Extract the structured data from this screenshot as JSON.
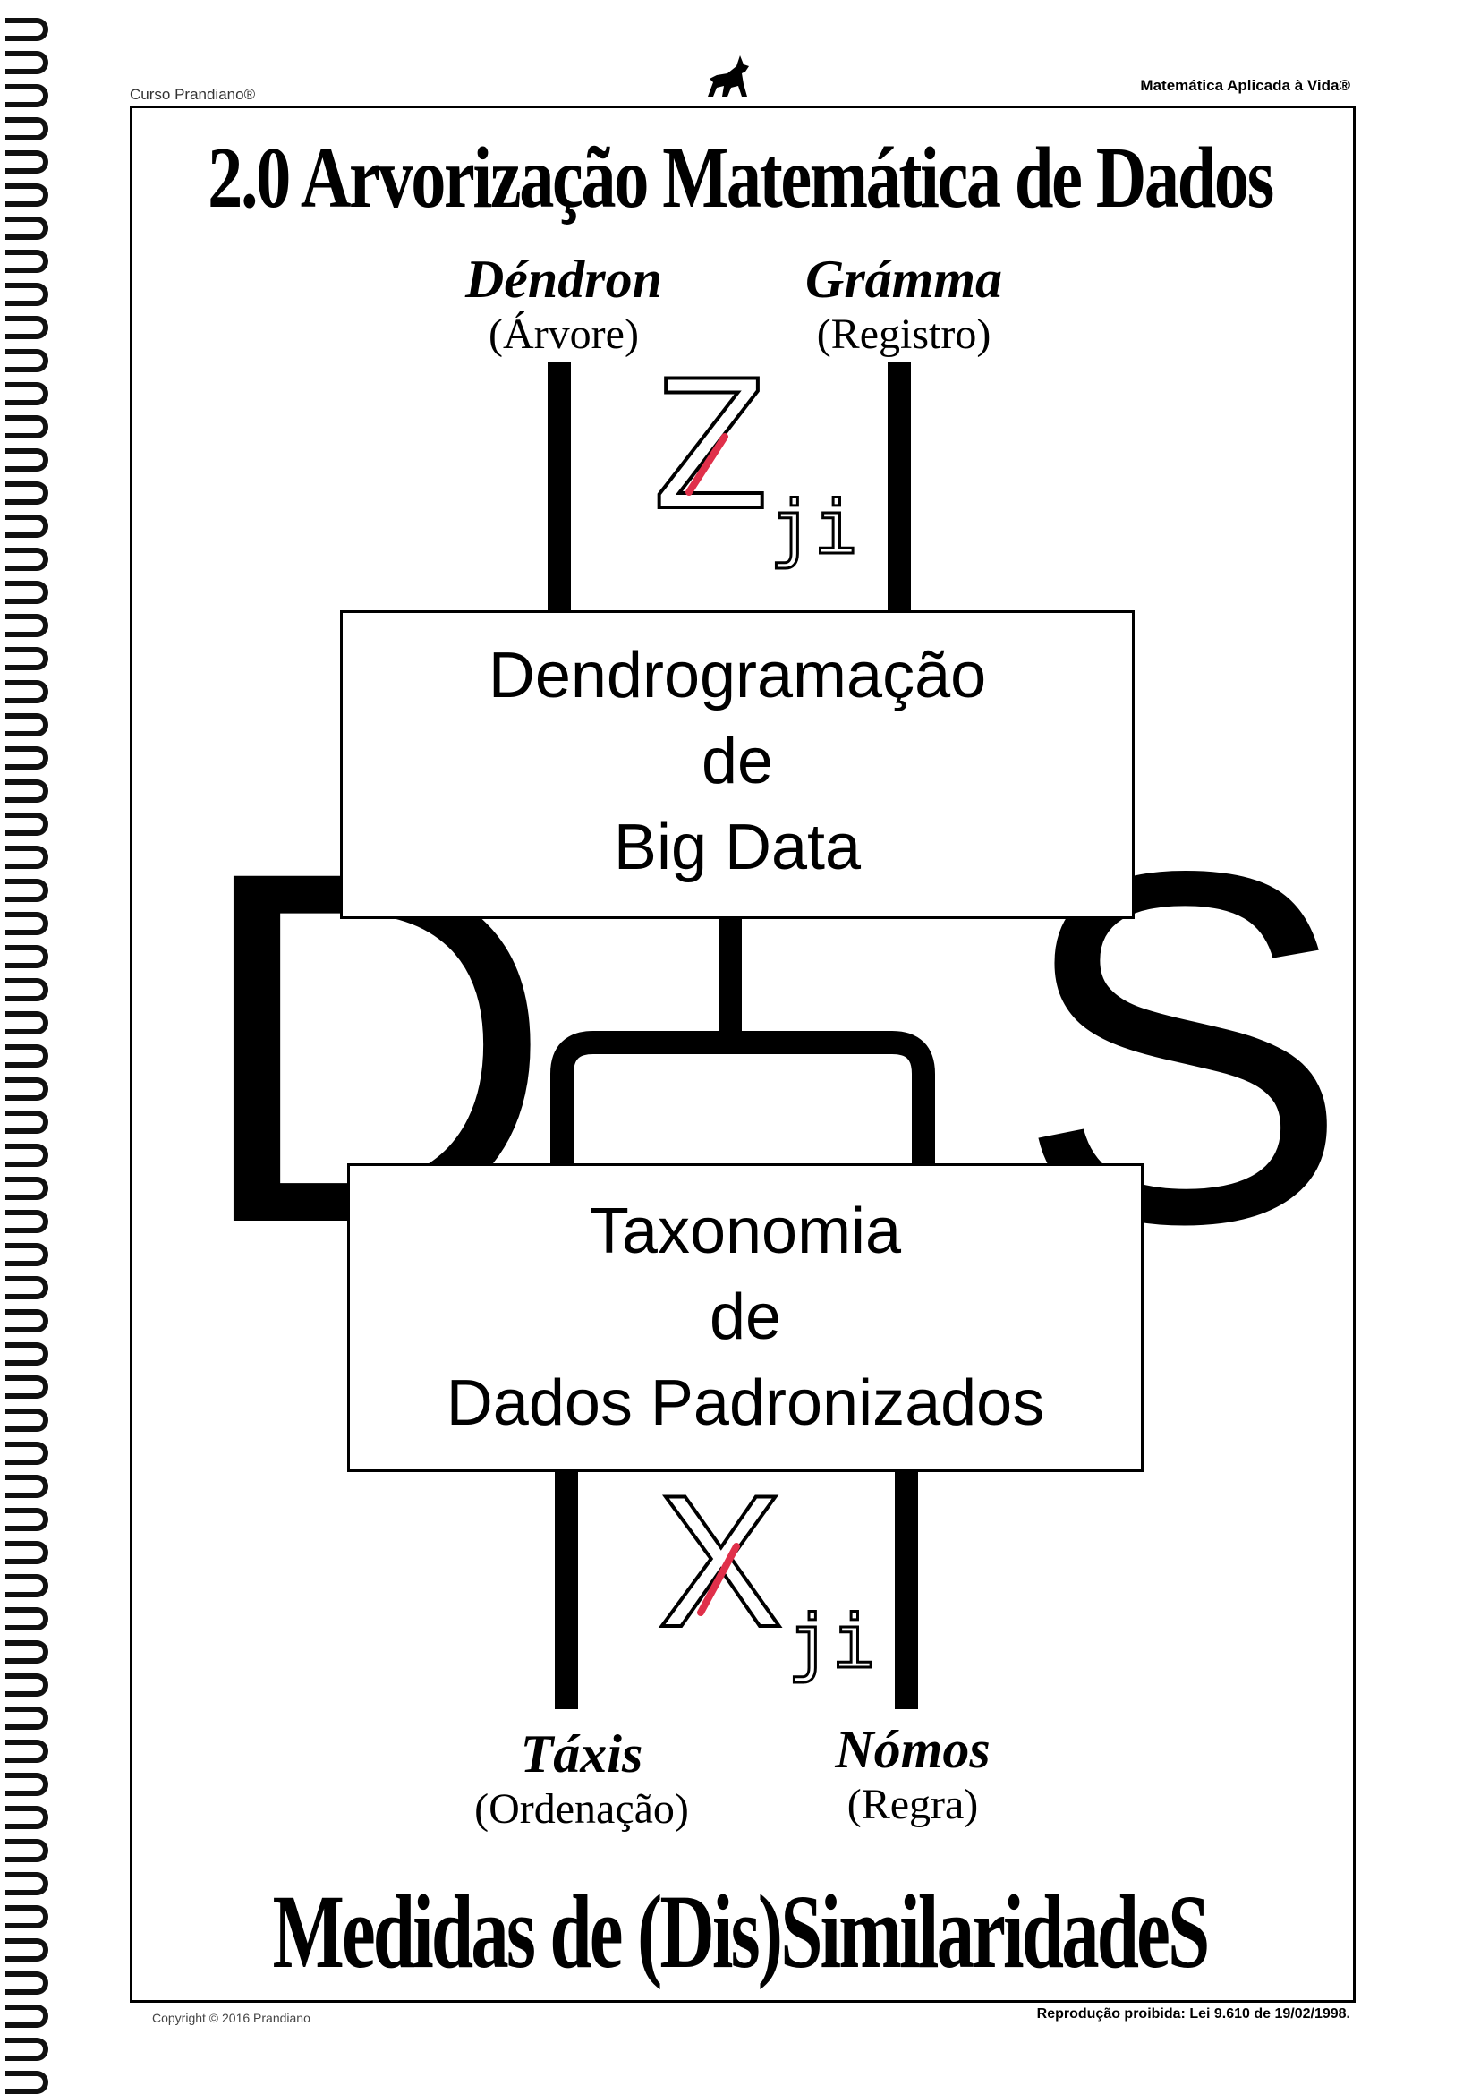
{
  "header": {
    "left": "Curso Prandiano®",
    "right": "Matemática Aplicada à Vida®"
  },
  "title": "2.0 Arvorização Matemática de Dados",
  "top_left": {
    "word": "Déndron",
    "translation": "(Árvore)"
  },
  "top_right": {
    "word": "Grámma",
    "translation": "(Registro)"
  },
  "top_symbol": {
    "letter": "Z",
    "subscript": "ji"
  },
  "box_top": {
    "line1": "Dendrogramação",
    "line2": "de",
    "line3": "Big Data"
  },
  "big_letters": {
    "left": "D",
    "right": "S"
  },
  "box_bottom": {
    "line1": "Taxonomia",
    "line2": "de",
    "line3": "Dados Padronizados"
  },
  "bottom_symbol": {
    "letter": "X",
    "subscript": "ji"
  },
  "bottom_left": {
    "word": "Táxis",
    "translation": "(Ordenação)"
  },
  "bottom_right": {
    "word": "Nómos",
    "translation": "(Regra)"
  },
  "footer_title": "Medidas de (Dis)SimilaridadeS",
  "footer": {
    "copyright": "Copyright © 2016 Prandiano",
    "reproduction": "Reprodução proibida: Lei 9.610 de 19/02/1998."
  },
  "colors": {
    "highlight": "#e0304a",
    "ink": "#000000"
  }
}
